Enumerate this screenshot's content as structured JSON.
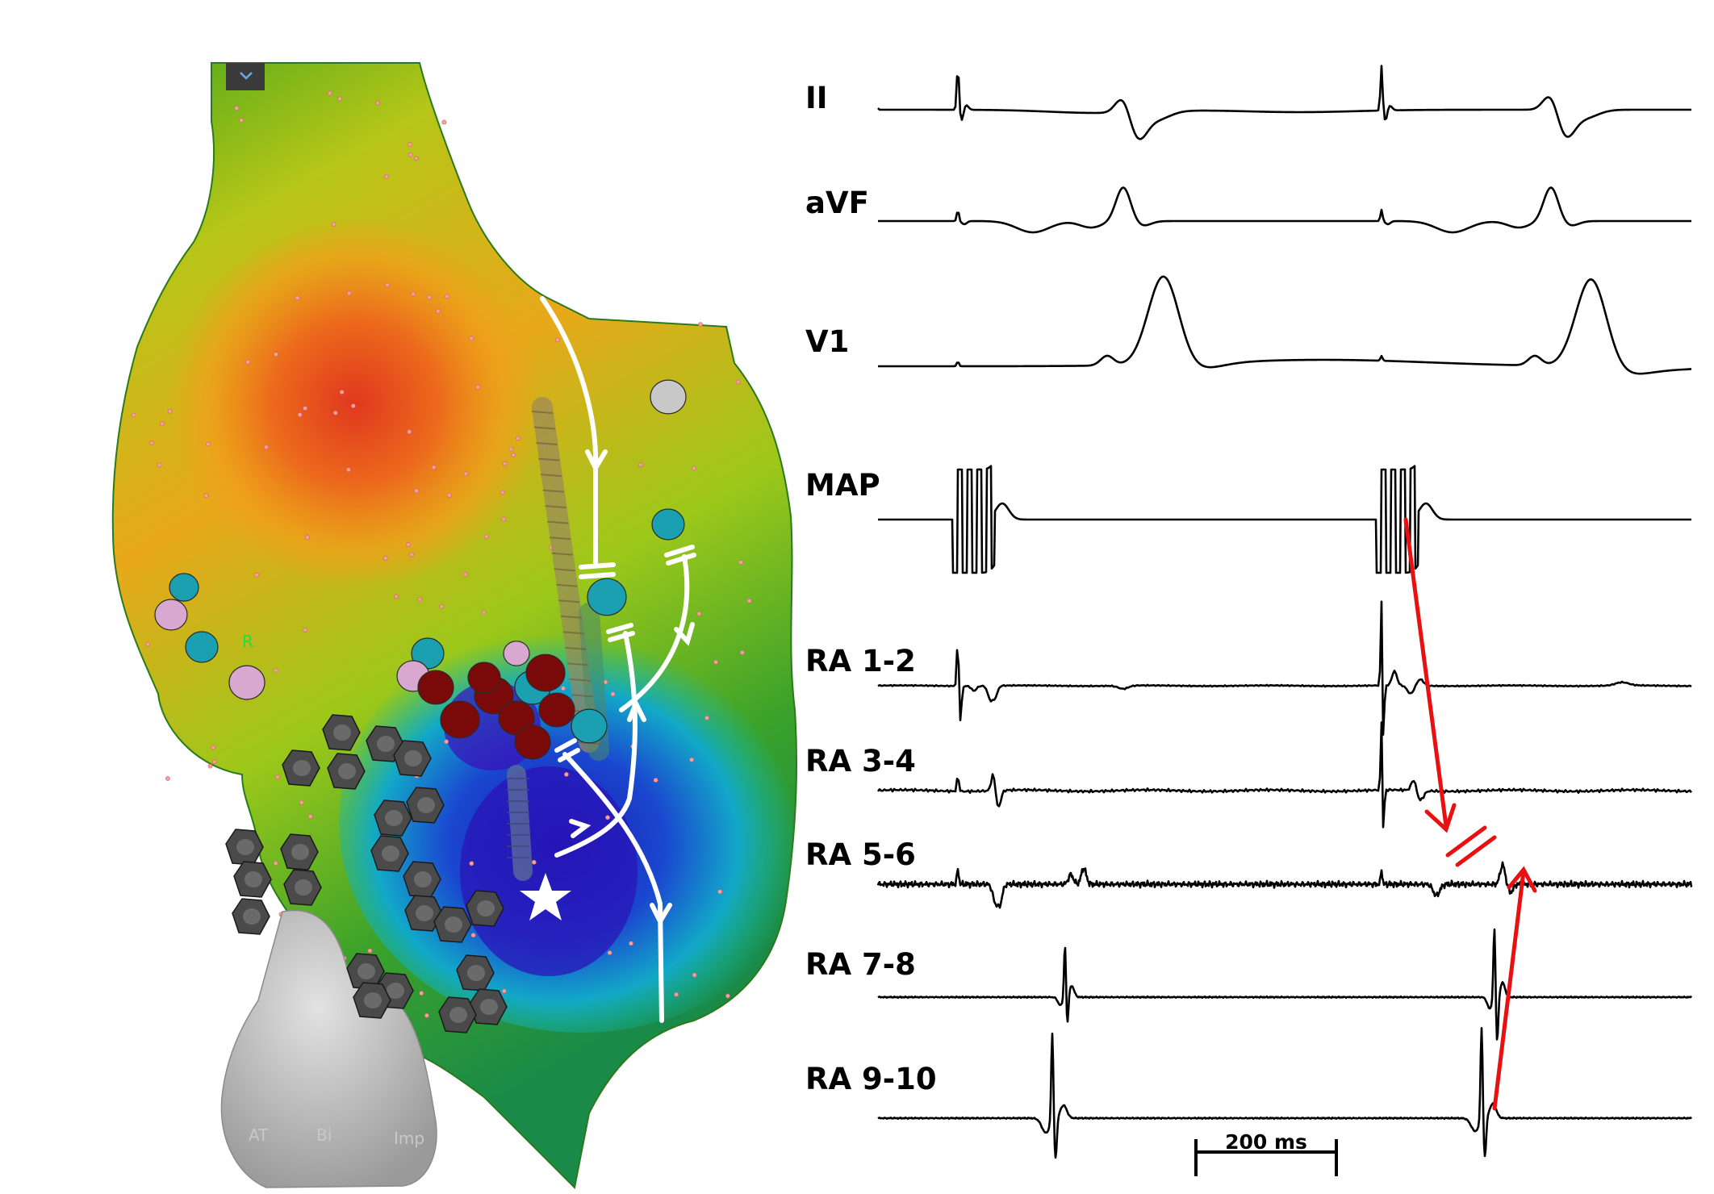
{
  "map": {
    "dropdown_icon": "chevron-down-icon",
    "marker_letter": "R",
    "bottom_labels": [
      "AT",
      "Bi",
      "Imp"
    ],
    "colors": {
      "red": "#e0381e",
      "orange": "#f08a1a",
      "yellow": "#d6cc14",
      "green": "#4ca81a",
      "cyan": "#10b2c4",
      "blue": "#1432c8",
      "indigo": "#3a10b8",
      "ablation_dark_red": "#7a0a0a",
      "pacing_sites_gray": "#4a4a4a",
      "annotation_white": "#ffffff"
    }
  },
  "ecg": {
    "leads": [
      "II",
      "aVF",
      "V1",
      "MAP",
      "RA 1-2",
      "RA 3-4",
      "RA 5-6",
      "RA 7-8",
      "RA 9-10"
    ],
    "scale_bar_label": "200 ms",
    "annotation_color": "#e81010"
  }
}
